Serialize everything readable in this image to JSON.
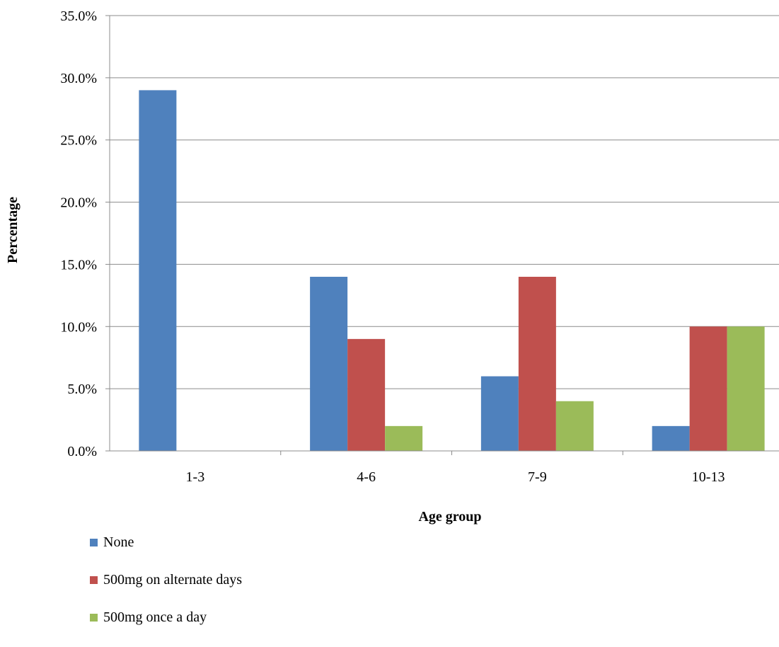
{
  "chart_data": {
    "type": "bar",
    "title": "",
    "xlabel": "Age group",
    "ylabel": "Percentage",
    "categories": [
      "1-3",
      "4-6",
      "7-9",
      "10-13"
    ],
    "series": [
      {
        "name": "None",
        "color": "#4F81BD",
        "values": [
          29.0,
          14.0,
          6.0,
          2.0
        ]
      },
      {
        "name": "500mg on alternate days",
        "color": "#C0504D",
        "values": [
          0.0,
          9.0,
          14.0,
          10.0
        ]
      },
      {
        "name": "500mg once a day",
        "color": "#9BBB59",
        "values": [
          0.0,
          2.0,
          4.0,
          10.0
        ]
      }
    ],
    "ylim": [
      0,
      35
    ],
    "yticks": [
      "0.0%",
      "5.0%",
      "10.0%",
      "15.0%",
      "20.0%",
      "25.0%",
      "30.0%",
      "35.0%"
    ],
    "grid": "horizontal",
    "legend_position": "bottom-left"
  }
}
